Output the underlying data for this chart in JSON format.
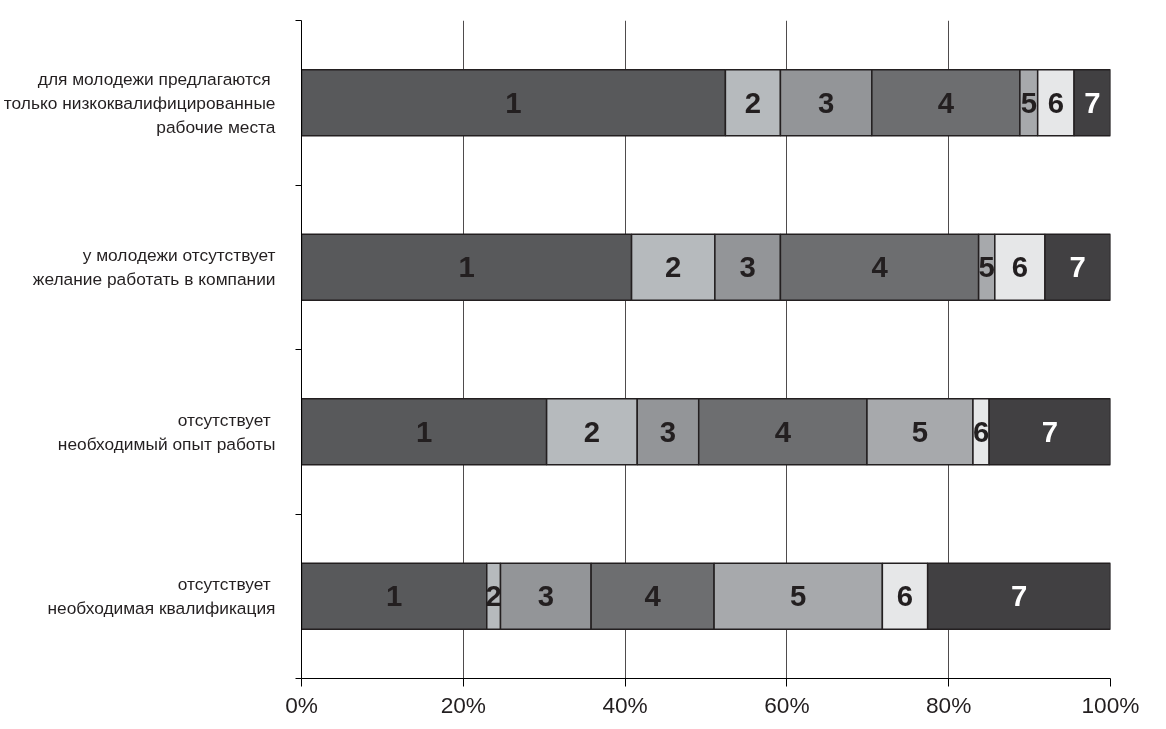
{
  "chart_data": {
    "type": "bar",
    "orientation": "horizontal",
    "stacked": true,
    "categories": [
      "для молодежи предлагаются \nтолько низкоквалифицированные\nрабочие места",
      "у молодежи отсутствует\nжелание работать в компании",
      "отсутствует \nнеобходимый опыт работы",
      "отсутствует \nнеобходимая квалификация"
    ],
    "series": [
      {
        "name": "1",
        "color": "#58595b",
        "values": [
          52.4,
          40.8,
          30.3,
          22.9
        ]
      },
      {
        "name": "2",
        "color": "#b6babd",
        "values": [
          6.8,
          10.3,
          11.2,
          1.7
        ]
      },
      {
        "name": "3",
        "color": "#939598",
        "values": [
          11.3,
          8.1,
          7.6,
          11.2
        ]
      },
      {
        "name": "4",
        "color": "#6d6e70",
        "values": [
          18.3,
          24.5,
          20.8,
          15.2
        ]
      },
      {
        "name": "5",
        "color": "#a7a9ac",
        "values": [
          2.2,
          2.0,
          13.1,
          20.8
        ]
      },
      {
        "name": "6",
        "color": "#e6e7e8",
        "values": [
          4.5,
          6.2,
          2.0,
          5.6
        ]
      },
      {
        "name": "7",
        "color": "#414042",
        "values": [
          4.5,
          8.1,
          15.0,
          22.6
        ]
      }
    ],
    "xlim": [
      0,
      100
    ],
    "xticks": [
      {
        "value": 0,
        "label": "0%"
      },
      {
        "value": 20,
        "label": "20%"
      },
      {
        "value": 40,
        "label": "40%"
      },
      {
        "value": 60,
        "label": "60%"
      },
      {
        "value": 80,
        "label": "80%"
      },
      {
        "value": 100,
        "label": "100%"
      }
    ],
    "grid": "x"
  }
}
